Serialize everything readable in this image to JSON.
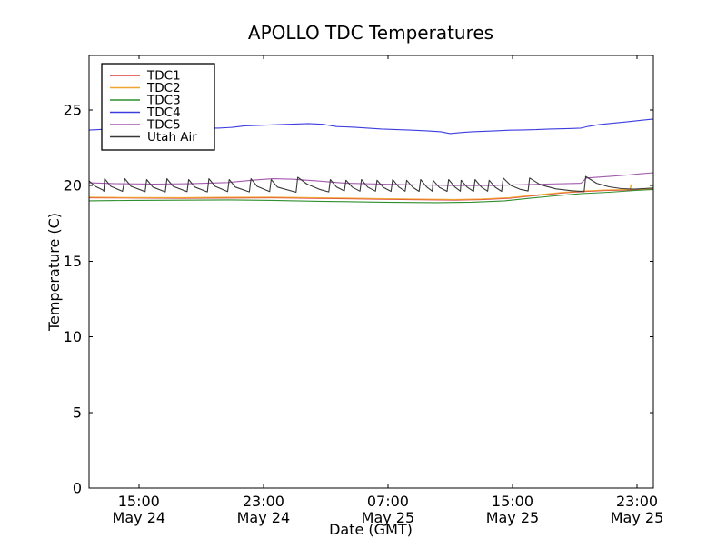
{
  "figure": {
    "background": "#ffffff",
    "frame_color": "#000000"
  },
  "chart_data": {
    "type": "line",
    "title": "APOLLO TDC Temperatures",
    "xlabel": "Date (GMT)",
    "ylabel": "Temperature (C)",
    "x_units": "hours since May 24 00:00 GMT",
    "xlim": [
      11.8,
      48.05
    ],
    "ylim": [
      0,
      28.6
    ],
    "grid": false,
    "legend_position": "upper left",
    "yticks": [
      0,
      5,
      10,
      15,
      20,
      25
    ],
    "xticks": [
      {
        "t": 15,
        "time": "15:00",
        "date": "May 24"
      },
      {
        "t": 23,
        "time": "23:00",
        "date": "May 24"
      },
      {
        "t": 31,
        "time": "07:00",
        "date": "May 25"
      },
      {
        "t": 39,
        "time": "15:00",
        "date": "May 25"
      },
      {
        "t": 47,
        "time": "23:00",
        "date": "May 25"
      }
    ],
    "series": [
      {
        "name": "TDC1",
        "color": "#dd3c3c",
        "points": [
          [
            11.8,
            19.19
          ],
          [
            17.8,
            19.16
          ],
          [
            23.6,
            19.19
          ],
          [
            28.3,
            19.13
          ],
          [
            32.4,
            19.07
          ],
          [
            35.3,
            19.04
          ],
          [
            37.0,
            19.07
          ],
          [
            38.8,
            19.16
          ],
          [
            39.9,
            19.28
          ],
          [
            41.1,
            19.4
          ],
          [
            42.3,
            19.52
          ],
          [
            43.7,
            19.61
          ],
          [
            44.9,
            19.67
          ],
          [
            46.2,
            19.7
          ],
          [
            47.2,
            19.73
          ],
          [
            48.05,
            19.76
          ]
        ]
      },
      {
        "name": "TDC2",
        "color": "#f0a432",
        "points": [
          [
            11.8,
            19.23
          ],
          [
            14.0,
            19.21
          ],
          [
            17.8,
            19.2
          ],
          [
            20.5,
            19.22
          ],
          [
            23.6,
            19.23
          ],
          [
            26.0,
            19.2
          ],
          [
            28.3,
            19.17
          ],
          [
            32.4,
            19.11
          ],
          [
            35.3,
            19.08
          ],
          [
            37.0,
            19.11
          ],
          [
            38.8,
            19.2
          ],
          [
            39.9,
            19.32
          ],
          [
            41.1,
            19.44
          ],
          [
            42.3,
            19.56
          ],
          [
            43.7,
            19.65
          ],
          [
            44.9,
            19.71
          ],
          [
            46.2,
            19.74
          ],
          [
            46.55,
            19.75
          ],
          [
            46.62,
            20.05
          ],
          [
            46.7,
            19.75
          ],
          [
            47.2,
            19.77
          ],
          [
            48.05,
            19.8
          ]
        ]
      },
      {
        "name": "TDC3",
        "color": "#2f8f2f",
        "points": [
          [
            11.8,
            18.99
          ],
          [
            14.8,
            19.02
          ],
          [
            20.7,
            19.05
          ],
          [
            23.6,
            19.02
          ],
          [
            26.5,
            18.96
          ],
          [
            30.6,
            18.9
          ],
          [
            34.1,
            18.87
          ],
          [
            36.4,
            18.9
          ],
          [
            38.5,
            18.99
          ],
          [
            39.9,
            19.14
          ],
          [
            41.7,
            19.32
          ],
          [
            43.4,
            19.47
          ],
          [
            45.2,
            19.56
          ],
          [
            46.9,
            19.68
          ],
          [
            48.05,
            19.74
          ]
        ]
      },
      {
        "name": "TDC4",
        "color": "#3d3de0",
        "points": [
          [
            11.8,
            23.67
          ],
          [
            13.1,
            23.74
          ],
          [
            14.8,
            23.67
          ],
          [
            16.6,
            23.74
          ],
          [
            18.3,
            23.8
          ],
          [
            20.1,
            23.8
          ],
          [
            21.0,
            23.85
          ],
          [
            21.8,
            23.95
          ],
          [
            24.2,
            24.04
          ],
          [
            25.9,
            24.1
          ],
          [
            26.8,
            24.05
          ],
          [
            27.7,
            23.9
          ],
          [
            28.8,
            23.86
          ],
          [
            30.6,
            23.74
          ],
          [
            32.4,
            23.67
          ],
          [
            33.5,
            23.62
          ],
          [
            34.4,
            23.56
          ],
          [
            35.0,
            23.44
          ],
          [
            35.6,
            23.5
          ],
          [
            36.4,
            23.56
          ],
          [
            37.9,
            23.62
          ],
          [
            38.8,
            23.66
          ],
          [
            39.7,
            23.68
          ],
          [
            40.5,
            23.7
          ],
          [
            41.4,
            23.74
          ],
          [
            42.6,
            23.77
          ],
          [
            43.4,
            23.8
          ],
          [
            43.9,
            23.92
          ],
          [
            44.6,
            24.04
          ],
          [
            45.5,
            24.13
          ],
          [
            46.4,
            24.22
          ],
          [
            47.2,
            24.31
          ],
          [
            48.05,
            24.4
          ]
        ]
      },
      {
        "name": "TDC5",
        "color": "#a25aad",
        "points": [
          [
            11.8,
            20.18
          ],
          [
            13.7,
            20.12
          ],
          [
            16.0,
            20.1
          ],
          [
            18.3,
            20.12
          ],
          [
            20.7,
            20.2
          ],
          [
            22.4,
            20.36
          ],
          [
            23.6,
            20.45
          ],
          [
            24.8,
            20.42
          ],
          [
            26.5,
            20.3
          ],
          [
            28.3,
            20.15
          ],
          [
            30.6,
            20.1
          ],
          [
            33.0,
            20.04
          ],
          [
            35.3,
            20.0
          ],
          [
            37.6,
            20.0
          ],
          [
            39.4,
            20.05
          ],
          [
            41.1,
            20.1
          ],
          [
            43.4,
            20.15
          ],
          [
            43.75,
            20.5
          ],
          [
            45.2,
            20.6
          ],
          [
            46.4,
            20.7
          ],
          [
            47.2,
            20.78
          ],
          [
            48.05,
            20.85
          ]
        ]
      },
      {
        "name": "Utah Air",
        "color": "#383838",
        "points": [
          [
            11.8,
            20.3
          ],
          [
            12.2,
            19.95
          ],
          [
            12.7,
            19.7
          ],
          [
            12.75,
            19.62
          ],
          [
            12.8,
            20.45
          ],
          [
            13.2,
            19.95
          ],
          [
            13.95,
            19.62
          ],
          [
            14.1,
            20.45
          ],
          [
            14.5,
            19.95
          ],
          [
            15.4,
            19.6
          ],
          [
            15.5,
            20.4
          ],
          [
            15.9,
            19.9
          ],
          [
            16.7,
            19.58
          ],
          [
            16.8,
            20.45
          ],
          [
            17.2,
            19.95
          ],
          [
            18.1,
            19.6
          ],
          [
            18.2,
            20.4
          ],
          [
            18.6,
            19.9
          ],
          [
            19.4,
            19.58
          ],
          [
            19.5,
            20.45
          ],
          [
            19.9,
            19.95
          ],
          [
            20.7,
            19.6
          ],
          [
            20.8,
            20.4
          ],
          [
            21.2,
            19.9
          ],
          [
            22.1,
            19.58
          ],
          [
            22.2,
            20.45
          ],
          [
            22.6,
            19.95
          ],
          [
            23.4,
            19.6
          ],
          [
            23.5,
            20.4
          ],
          [
            23.9,
            19.9
          ],
          [
            25.1,
            19.56
          ],
          [
            25.2,
            20.55
          ],
          [
            25.8,
            20.1
          ],
          [
            26.6,
            19.75
          ],
          [
            27.2,
            19.58
          ],
          [
            27.3,
            20.4
          ],
          [
            27.7,
            19.9
          ],
          [
            28.2,
            19.65
          ],
          [
            28.3,
            20.35
          ],
          [
            28.7,
            19.9
          ],
          [
            29.2,
            19.63
          ],
          [
            29.3,
            20.4
          ],
          [
            29.7,
            19.9
          ],
          [
            30.2,
            19.63
          ],
          [
            30.3,
            20.35
          ],
          [
            30.7,
            19.88
          ],
          [
            31.2,
            19.62
          ],
          [
            31.3,
            20.4
          ],
          [
            31.7,
            19.9
          ],
          [
            32.1,
            19.63
          ],
          [
            32.2,
            20.35
          ],
          [
            32.6,
            19.88
          ],
          [
            33.0,
            19.62
          ],
          [
            33.1,
            20.4
          ],
          [
            33.5,
            19.9
          ],
          [
            33.85,
            19.63
          ],
          [
            33.9,
            20.35
          ],
          [
            34.3,
            19.88
          ],
          [
            34.8,
            19.62
          ],
          [
            34.9,
            20.4
          ],
          [
            35.3,
            19.9
          ],
          [
            35.65,
            19.63
          ],
          [
            35.7,
            20.35
          ],
          [
            36.1,
            19.88
          ],
          [
            36.5,
            19.62
          ],
          [
            36.6,
            20.4
          ],
          [
            37.0,
            19.9
          ],
          [
            37.4,
            19.63
          ],
          [
            37.5,
            20.35
          ],
          [
            37.9,
            19.88
          ],
          [
            38.3,
            19.62
          ],
          [
            38.4,
            20.5
          ],
          [
            38.9,
            20.0
          ],
          [
            39.5,
            19.75
          ],
          [
            40.0,
            19.64
          ],
          [
            40.1,
            20.5
          ],
          [
            40.8,
            20.05
          ],
          [
            41.8,
            19.78
          ],
          [
            42.8,
            19.66
          ],
          [
            43.6,
            19.6
          ],
          [
            43.7,
            20.6
          ],
          [
            44.4,
            20.15
          ],
          [
            45.2,
            19.92
          ],
          [
            46.0,
            19.8
          ],
          [
            46.8,
            19.76
          ],
          [
            47.4,
            19.8
          ],
          [
            48.05,
            19.84
          ]
        ]
      }
    ]
  }
}
